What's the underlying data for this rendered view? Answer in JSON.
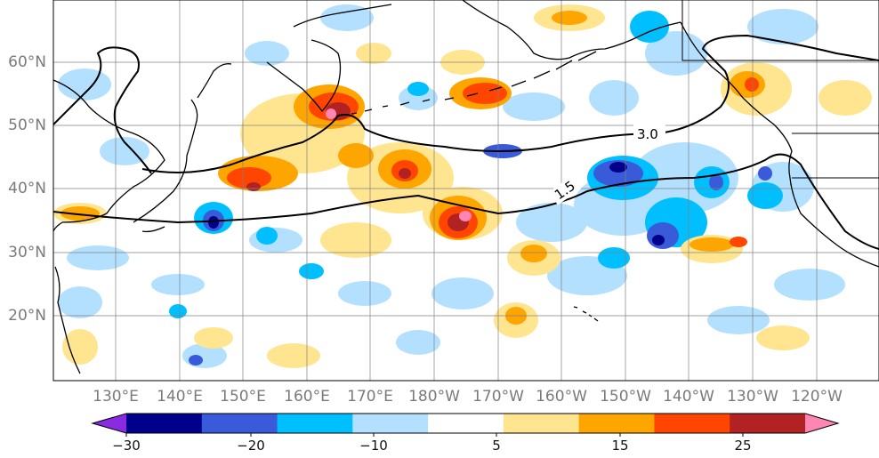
{
  "map": {
    "lat_labels": [
      "60°N",
      "50°N",
      "40°N",
      "30°N",
      "20°N"
    ],
    "lon_labels": [
      "130°E",
      "140°E",
      "150°E",
      "160°E",
      "170°E",
      "180°W",
      "170°W",
      "160°W",
      "150°W",
      "140°W",
      "130°W",
      "120°W"
    ],
    "contour_labels": [
      "3.0",
      "1.5"
    ],
    "coastline_color": "#000000",
    "gridline_color": "#808080"
  },
  "colorbar": {
    "ticks": [
      "−30",
      "−20",
      "−10",
      "5",
      "15",
      "25"
    ],
    "colors": [
      "#8a2be2",
      "#00008b",
      "#3a5bd9",
      "#00bfff",
      "#b3e0ff",
      "#ffffff",
      "#ffe58f",
      "#ffa500",
      "#ff4500",
      "#b22222",
      "#ff85b3"
    ]
  }
}
